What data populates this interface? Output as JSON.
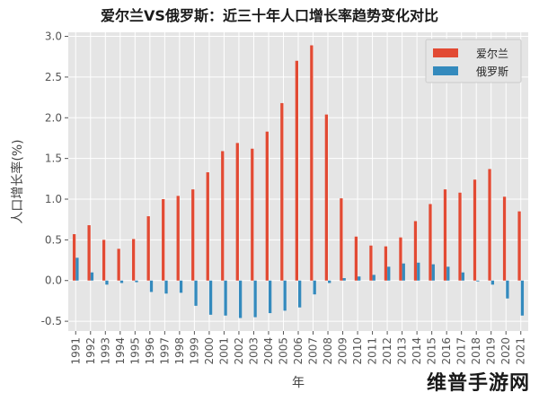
{
  "chart_data": {
    "type": "bar",
    "title": "爱尔兰VS俄罗斯：近三十年人口增长率趋势变化对比",
    "xlabel": "年",
    "ylabel": "人口增长率(%)",
    "ylim": [
      -0.62,
      3.05
    ],
    "yticks": [
      -0.5,
      0.0,
      0.5,
      1.0,
      1.5,
      2.0,
      2.5,
      3.0
    ],
    "ytick_labels": [
      "-0.5",
      "0.0",
      "0.5",
      "1.0",
      "1.5",
      "2.0",
      "2.5",
      "3.0"
    ],
    "grid": true,
    "legend_position": "top-right",
    "categories": [
      "1991",
      "1992",
      "1993",
      "1994",
      "1995",
      "1996",
      "1997",
      "1998",
      "1999",
      "2000",
      "2001",
      "2002",
      "2003",
      "2004",
      "2005",
      "2006",
      "2007",
      "2008",
      "2009",
      "2010",
      "2011",
      "2012",
      "2013",
      "2014",
      "2015",
      "2016",
      "2017",
      "2018",
      "2019",
      "2020",
      "2021"
    ],
    "series": [
      {
        "name": "爱尔兰",
        "color": "#e24a33",
        "values": [
          0.57,
          0.68,
          0.5,
          0.39,
          0.51,
          0.79,
          1.0,
          1.04,
          1.12,
          1.33,
          1.59,
          1.69,
          1.62,
          1.83,
          2.18,
          2.7,
          2.89,
          2.04,
          1.01,
          0.54,
          0.43,
          0.42,
          0.53,
          0.73,
          0.94,
          1.12,
          1.08,
          1.24,
          1.37,
          1.03,
          0.85
        ]
      },
      {
        "name": "俄罗斯",
        "color": "#348abd",
        "values": [
          0.28,
          0.1,
          -0.05,
          -0.03,
          -0.02,
          -0.14,
          -0.16,
          -0.15,
          -0.31,
          -0.42,
          -0.43,
          -0.46,
          -0.45,
          -0.4,
          -0.37,
          -0.33,
          -0.17,
          -0.03,
          0.03,
          0.05,
          0.07,
          0.17,
          0.21,
          0.22,
          0.2,
          0.17,
          0.1,
          -0.01,
          -0.05,
          -0.22,
          -0.43
        ]
      }
    ]
  },
  "watermark": {
    "text": "维普手游网"
  }
}
